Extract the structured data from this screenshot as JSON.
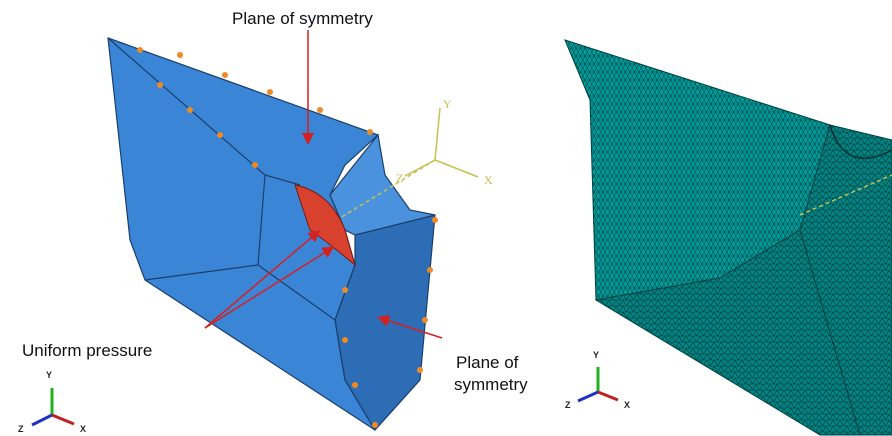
{
  "annotations": {
    "top": "Plane of symmetry",
    "pressure": "Uniform pressure",
    "right_line1": "Plane of",
    "right_line2": "symmetry"
  },
  "csys": {
    "y": "Y",
    "x": "X",
    "z": "Z"
  },
  "triad_left": {
    "y": "Y",
    "x": "X",
    "z": "Z"
  },
  "triad_right": {
    "y": "Y",
    "x": "X",
    "z": "Z"
  }
}
